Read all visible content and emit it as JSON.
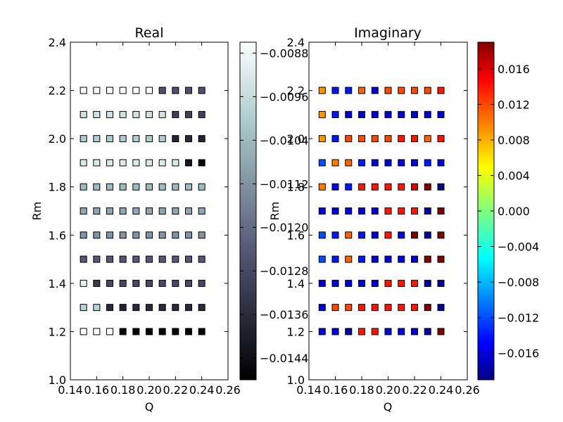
{
  "chart_data": [
    {
      "type": "heatmap",
      "title": "Real",
      "xlabel": "Q",
      "ylabel": "Rm",
      "xlim": [
        0.14,
        0.26
      ],
      "ylim": [
        1.0,
        2.4
      ],
      "x_ticks": [
        "0.14",
        "0.16",
        "0.18",
        "0.20",
        "0.22",
        "0.24",
        "0.26"
      ],
      "y_ticks": [
        "1.0",
        "1.2",
        "1.4",
        "1.6",
        "1.8",
        "2.0",
        "2.2",
        "2.4"
      ],
      "x": [
        0.15,
        0.16,
        0.17,
        0.18,
        0.19,
        0.2,
        0.21,
        0.22,
        0.23,
        0.24
      ],
      "y": [
        2.2,
        2.1,
        2.0,
        1.9,
        1.8,
        1.7,
        1.6,
        1.5,
        1.4,
        1.3,
        1.2
      ],
      "values": [
        [
          -0.0086,
          -0.0086,
          -0.0086,
          -0.0086,
          -0.0086,
          -0.0086,
          -0.0126,
          -0.0126,
          -0.0126,
          -0.0126
        ],
        [
          -0.0094,
          -0.0094,
          -0.0094,
          -0.0094,
          -0.0094,
          -0.0094,
          -0.0094,
          -0.013,
          -0.013,
          -0.013
        ],
        [
          -0.01,
          -0.01,
          -0.01,
          -0.01,
          -0.01,
          -0.01,
          -0.01,
          -0.0138,
          -0.0136,
          -0.0138
        ],
        [
          -0.0092,
          -0.0092,
          -0.0092,
          -0.0092,
          -0.0092,
          -0.0092,
          -0.0092,
          -0.0092,
          -0.0142,
          -0.0148
        ],
        [
          -0.0104,
          -0.0104,
          -0.0104,
          -0.0104,
          -0.0104,
          -0.0104,
          -0.0104,
          -0.0104,
          -0.0104,
          -0.0104
        ],
        [
          -0.0108,
          -0.0108,
          -0.0108,
          -0.0108,
          -0.0108,
          -0.0108,
          -0.0108,
          -0.0108,
          -0.0108,
          -0.0108
        ],
        [
          -0.0112,
          -0.0112,
          -0.0112,
          -0.0112,
          -0.0112,
          -0.0112,
          -0.0112,
          -0.0112,
          -0.0112,
          -0.0112
        ],
        [
          -0.0124,
          -0.0124,
          -0.0124,
          -0.0124,
          -0.0124,
          -0.0124,
          -0.0124,
          -0.0124,
          -0.0124,
          -0.0124
        ],
        [
          -0.009,
          -0.0132,
          -0.0128,
          -0.0128,
          -0.0128,
          -0.0128,
          -0.0128,
          -0.0128,
          -0.0128,
          -0.0128
        ],
        [
          -0.0098,
          -0.0098,
          -0.0136,
          -0.0138,
          -0.0136,
          -0.0136,
          -0.0136,
          -0.0136,
          -0.0136,
          -0.0136
        ],
        [
          -0.0086,
          -0.0086,
          -0.0086,
          -0.0148,
          -0.0148,
          -0.0148,
          -0.0148,
          -0.0148,
          -0.0148,
          -0.0148
        ]
      ],
      "colorscale": "bone",
      "colorbar": {
        "vmin": -0.0148,
        "vmax": -0.0086,
        "ticks": [
          -0.0088,
          -0.0096,
          -0.0104,
          -0.0112,
          -0.012,
          -0.0128,
          -0.0136,
          -0.0144
        ],
        "tick_labels": [
          "−0.0088",
          "−0.0096",
          "−0.0104",
          "−0.0112",
          "−0.0120",
          "−0.0128",
          "−0.0136",
          "−0.0144"
        ]
      },
      "grid": false
    },
    {
      "type": "heatmap",
      "title": "Imaginary",
      "xlabel": "Q",
      "ylabel": "Rm",
      "xlim": [
        0.14,
        0.26
      ],
      "ylim": [
        1.0,
        2.4
      ],
      "x_ticks": [
        "0.14",
        "0.16",
        "0.18",
        "0.20",
        "0.22",
        "0.24",
        "0.26"
      ],
      "y_ticks": [
        "1.0",
        "1.2",
        "1.4",
        "1.6",
        "1.8",
        "2.0",
        "2.2",
        "2.4"
      ],
      "x": [
        0.15,
        0.16,
        0.17,
        0.18,
        0.19,
        0.2,
        0.21,
        0.22,
        0.23,
        0.24
      ],
      "y": [
        2.2,
        2.1,
        2.0,
        1.9,
        1.8,
        1.7,
        1.6,
        1.5,
        1.4,
        1.3,
        1.2
      ],
      "values": [
        [
          0.009,
          -0.014,
          -0.014,
          0.011,
          -0.016,
          0.012,
          0.012,
          0.012,
          0.012,
          0.014
        ],
        [
          0.009,
          -0.014,
          -0.016,
          -0.016,
          -0.016,
          -0.016,
          -0.016,
          -0.016,
          -0.016,
          -0.016
        ],
        [
          0.009,
          -0.014,
          0.012,
          0.012,
          0.012,
          0.012,
          0.014,
          0.014,
          0.011,
          0.014
        ],
        [
          -0.012,
          0.01,
          0.011,
          -0.014,
          -0.016,
          -0.016,
          -0.016,
          -0.016,
          -0.014,
          -0.016
        ],
        [
          0.01,
          -0.016,
          -0.014,
          0.014,
          0.014,
          0.014,
          0.014,
          0.016,
          0.019,
          -0.019
        ],
        [
          -0.016,
          -0.016,
          -0.016,
          -0.016,
          -0.016,
          0.014,
          0.014,
          0.014,
          -0.018,
          0.019
        ],
        [
          -0.012,
          -0.014,
          0.011,
          -0.014,
          -0.016,
          0.014,
          -0.016,
          0.019,
          -0.018,
          0.019
        ],
        [
          -0.012,
          -0.014,
          0.011,
          -0.014,
          -0.016,
          -0.016,
          -0.016,
          -0.016,
          0.019,
          0.019
        ],
        [
          -0.016,
          -0.016,
          -0.016,
          -0.016,
          -0.016,
          0.014,
          0.014,
          0.014,
          -0.018,
          -0.018
        ],
        [
          -0.016,
          0.012,
          0.012,
          0.014,
          0.014,
          0.014,
          0.014,
          0.014,
          0.019,
          -0.018
        ],
        [
          -0.016,
          -0.016,
          -0.018,
          0.014,
          0.014,
          -0.016,
          -0.016,
          -0.016,
          -0.018,
          0.019
        ]
      ],
      "colorscale": "jet",
      "colorbar": {
        "vmin": -0.019,
        "vmax": 0.019,
        "ticks": [
          -0.016,
          -0.012,
          -0.008,
          -0.004,
          0.0,
          0.004,
          0.008,
          0.012,
          0.016
        ],
        "tick_labels": [
          "−0.016",
          "−0.012",
          "−0.008",
          "−0.004",
          "0.000",
          "0.004",
          "0.008",
          "0.012",
          "0.016"
        ]
      },
      "grid": false
    }
  ]
}
